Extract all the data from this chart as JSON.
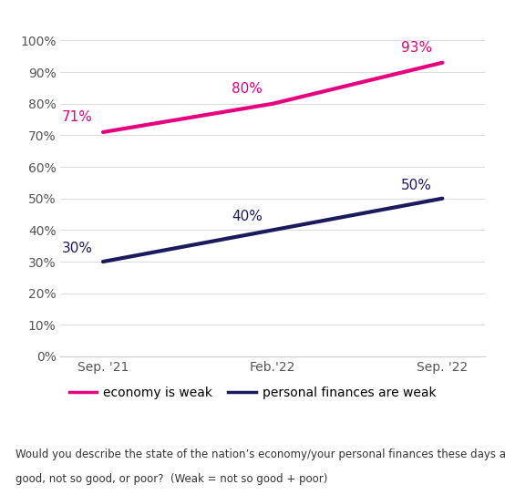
{
  "x_labels": [
    "Sep. '21",
    "Feb.'22",
    "Sep. '22"
  ],
  "x_positions": [
    0,
    1,
    2
  ],
  "economy_values": [
    0.71,
    0.8,
    0.93
  ],
  "economy_labels": [
    "71%",
    "80%",
    "93%"
  ],
  "personal_values": [
    0.3,
    0.4,
    0.5
  ],
  "personal_labels": [
    "30%",
    "40%",
    "50%"
  ],
  "economy_color": "#e6007e",
  "personal_color": "#1a1a5e",
  "ylim": [
    0,
    1.05
  ],
  "yticks": [
    0.0,
    0.1,
    0.2,
    0.3,
    0.4,
    0.5,
    0.6,
    0.7,
    0.8,
    0.9,
    1.0
  ],
  "ytick_labels": [
    "0%",
    "10%",
    "20%",
    "30%",
    "40%",
    "50%",
    "60%",
    "70%",
    "80%",
    "90%",
    "100%"
  ],
  "legend_economy": "economy is weak",
  "legend_personal": "personal finances are weak",
  "footnote_line1": "Would you describe the state of the nation’s economy/your personal finances these days as excellent,",
  "footnote_line2": "good, not so good, or poor?  (Weak = not so good + poor)",
  "line_width": 3.0,
  "label_fontsize": 11,
  "tick_fontsize": 10,
  "legend_fontsize": 10,
  "footnote_fontsize": 8.5
}
